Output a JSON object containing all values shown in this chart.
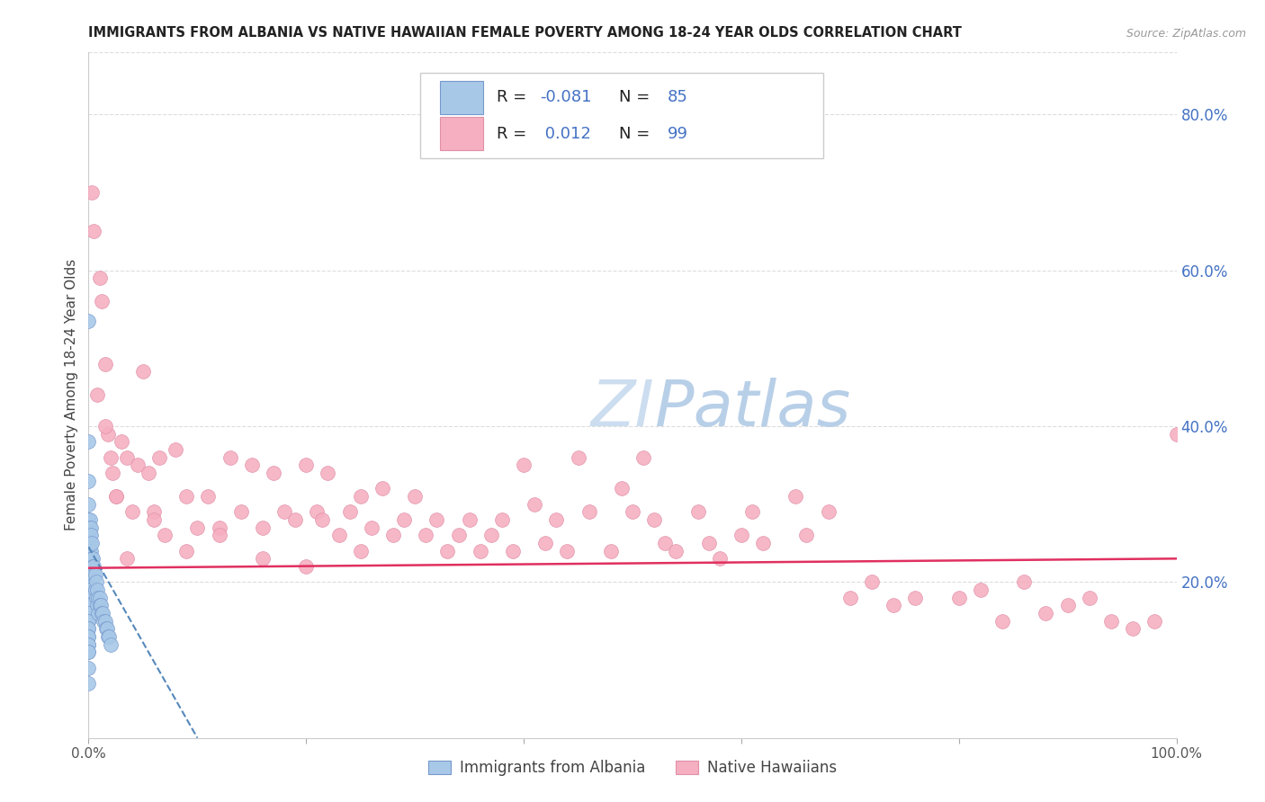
{
  "title": "IMMIGRANTS FROM ALBANIA VS NATIVE HAWAIIAN FEMALE POVERTY AMONG 18-24 YEAR OLDS CORRELATION CHART",
  "source": "Source: ZipAtlas.com",
  "ylabel": "Female Poverty Among 18-24 Year Olds",
  "legend_albania": "Immigrants from Albania",
  "legend_hawaiian": "Native Hawaiians",
  "legend_r_albania": "-0.081",
  "legend_n_albania": "85",
  "legend_r_hawaiian": "0.012",
  "legend_n_hawaiian": "99",
  "xlim": [
    0,
    1.0
  ],
  "ylim": [
    0,
    0.88
  ],
  "right_yticks": [
    0.2,
    0.4,
    0.6,
    0.8
  ],
  "right_ytick_labels": [
    "20.0%",
    "40.0%",
    "60.0%",
    "80.0%"
  ],
  "color_albania": "#a8c8e8",
  "color_hawaiian": "#f5afc0",
  "color_trendline_albania": "#5588bb",
  "color_trendline_hawaiian": "#e03060",
  "title_color": "#222222",
  "source_color": "#999999",
  "axis_label_color": "#444444",
  "right_axis_color": "#4472c4",
  "legend_text_color": "#222222",
  "legend_value_color": "#4472c4",
  "grid_color": "#dddddd",
  "background_color": "#ffffff",
  "watermark_color": "#ccddf0",
  "albania_x": [
    0.0,
    0.0,
    0.0,
    0.0,
    0.0,
    0.0,
    0.0,
    0.0,
    0.0,
    0.0,
    0.0,
    0.0,
    0.0,
    0.0,
    0.0,
    0.0,
    0.0,
    0.0,
    0.0,
    0.0,
    0.0,
    0.0,
    0.0,
    0.0,
    0.0,
    0.0,
    0.0,
    0.0,
    0.0,
    0.0,
    0.0,
    0.0,
    0.0,
    0.0,
    0.0,
    0.0,
    0.0,
    0.0,
    0.0,
    0.0,
    0.0,
    0.0,
    0.0,
    0.0,
    0.0,
    0.0,
    0.0,
    0.0,
    0.0,
    0.0,
    0.001,
    0.001,
    0.001,
    0.001,
    0.001,
    0.002,
    0.002,
    0.002,
    0.003,
    0.003,
    0.003,
    0.004,
    0.004,
    0.005,
    0.005,
    0.006,
    0.006,
    0.007,
    0.007,
    0.008,
    0.008,
    0.009,
    0.009,
    0.01,
    0.01,
    0.011,
    0.012,
    0.013,
    0.014,
    0.015,
    0.016,
    0.017,
    0.018,
    0.019,
    0.02
  ],
  "albania_y": [
    0.535,
    0.38,
    0.33,
    0.3,
    0.28,
    0.28,
    0.27,
    0.26,
    0.26,
    0.25,
    0.25,
    0.25,
    0.24,
    0.24,
    0.24,
    0.23,
    0.23,
    0.23,
    0.22,
    0.22,
    0.22,
    0.22,
    0.21,
    0.21,
    0.21,
    0.2,
    0.2,
    0.2,
    0.19,
    0.19,
    0.19,
    0.18,
    0.18,
    0.17,
    0.17,
    0.17,
    0.16,
    0.16,
    0.15,
    0.15,
    0.14,
    0.14,
    0.13,
    0.13,
    0.12,
    0.12,
    0.11,
    0.11,
    0.09,
    0.07,
    0.28,
    0.27,
    0.26,
    0.25,
    0.24,
    0.27,
    0.26,
    0.24,
    0.25,
    0.23,
    0.22,
    0.23,
    0.22,
    0.22,
    0.21,
    0.21,
    0.19,
    0.2,
    0.18,
    0.19,
    0.17,
    0.18,
    0.16,
    0.18,
    0.17,
    0.17,
    0.16,
    0.16,
    0.15,
    0.15,
    0.14,
    0.14,
    0.13,
    0.13,
    0.12
  ],
  "hawaiian_x": [
    0.003,
    0.005,
    0.01,
    0.012,
    0.015,
    0.018,
    0.02,
    0.022,
    0.025,
    0.03,
    0.035,
    0.04,
    0.045,
    0.05,
    0.055,
    0.06,
    0.065,
    0.07,
    0.08,
    0.09,
    0.1,
    0.11,
    0.12,
    0.13,
    0.14,
    0.15,
    0.16,
    0.17,
    0.18,
    0.19,
    0.2,
    0.21,
    0.215,
    0.22,
    0.23,
    0.24,
    0.25,
    0.26,
    0.27,
    0.28,
    0.29,
    0.3,
    0.31,
    0.32,
    0.33,
    0.34,
    0.35,
    0.36,
    0.37,
    0.38,
    0.39,
    0.4,
    0.41,
    0.42,
    0.43,
    0.44,
    0.45,
    0.46,
    0.48,
    0.49,
    0.5,
    0.51,
    0.52,
    0.53,
    0.54,
    0.56,
    0.57,
    0.58,
    0.6,
    0.61,
    0.62,
    0.65,
    0.66,
    0.68,
    0.7,
    0.72,
    0.74,
    0.76,
    0.8,
    0.82,
    0.84,
    0.86,
    0.88,
    0.9,
    0.92,
    0.94,
    0.96,
    0.98,
    1.0,
    0.008,
    0.015,
    0.025,
    0.035,
    0.06,
    0.09,
    0.12,
    0.16,
    0.2,
    0.25
  ],
  "hawaiian_y": [
    0.7,
    0.65,
    0.59,
    0.56,
    0.48,
    0.39,
    0.36,
    0.34,
    0.31,
    0.38,
    0.36,
    0.29,
    0.35,
    0.47,
    0.34,
    0.29,
    0.36,
    0.26,
    0.37,
    0.31,
    0.27,
    0.31,
    0.27,
    0.36,
    0.29,
    0.35,
    0.27,
    0.34,
    0.29,
    0.28,
    0.35,
    0.29,
    0.28,
    0.34,
    0.26,
    0.29,
    0.31,
    0.27,
    0.32,
    0.26,
    0.28,
    0.31,
    0.26,
    0.28,
    0.24,
    0.26,
    0.28,
    0.24,
    0.26,
    0.28,
    0.24,
    0.35,
    0.3,
    0.25,
    0.28,
    0.24,
    0.36,
    0.29,
    0.24,
    0.32,
    0.29,
    0.36,
    0.28,
    0.25,
    0.24,
    0.29,
    0.25,
    0.23,
    0.26,
    0.29,
    0.25,
    0.31,
    0.26,
    0.29,
    0.18,
    0.2,
    0.17,
    0.18,
    0.18,
    0.19,
    0.15,
    0.2,
    0.16,
    0.17,
    0.18,
    0.15,
    0.14,
    0.15,
    0.39,
    0.44,
    0.4,
    0.31,
    0.23,
    0.28,
    0.24,
    0.26,
    0.23,
    0.22,
    0.24
  ]
}
